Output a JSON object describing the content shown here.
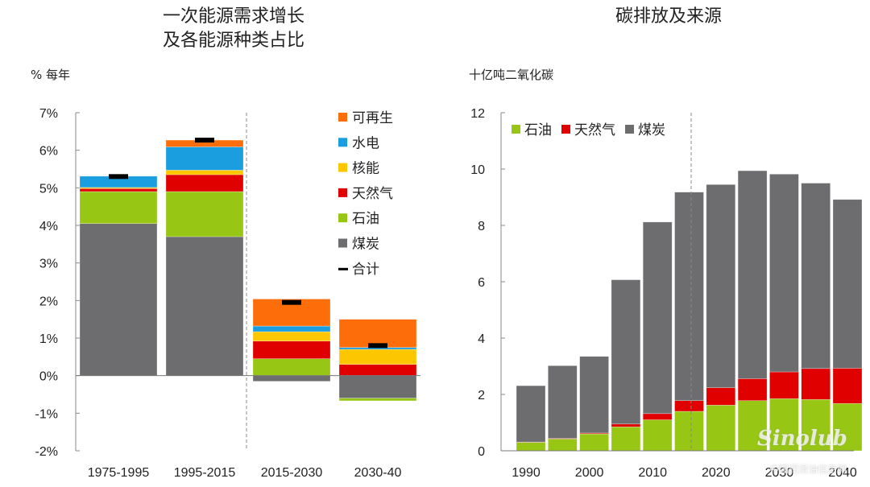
{
  "chart_data": [
    {
      "type": "bar",
      "stacked": true,
      "title": "一次能源需求增长\n及各能源种类占比",
      "title_lines": [
        "一次能源需求增长",
        "及各能源种类占比"
      ],
      "ylabel": "% 每年",
      "xlabel": "",
      "ylim": [
        -2,
        7
      ],
      "yticks": [
        "7%",
        "6%",
        "5%",
        "4%",
        "3%",
        "2%",
        "1%",
        "0%",
        "-1%",
        "-2%"
      ],
      "ytick_values": [
        7,
        6,
        5,
        4,
        3,
        2,
        1,
        0,
        -1,
        -2
      ],
      "categories": [
        "1975-1995",
        "1995-2015",
        "2015-2030",
        "2030-40"
      ],
      "divider_after_category": 1,
      "legend_position": "right",
      "series": [
        {
          "name": "煤炭",
          "color": "#6d6d6f",
          "values": [
            4.05,
            3.7,
            -0.15,
            -0.6
          ]
        },
        {
          "name": "石油",
          "color": "#97c614",
          "values": [
            0.85,
            1.2,
            0.45,
            -0.07
          ]
        },
        {
          "name": "天然气",
          "color": "#e00000",
          "values": [
            0.08,
            0.45,
            0.47,
            0.3
          ]
        },
        {
          "name": "核能",
          "color": "#fcc600",
          "values": [
            0.03,
            0.12,
            0.25,
            0.4
          ]
        },
        {
          "name": "水电",
          "color": "#1a9ee0",
          "values": [
            0.3,
            0.62,
            0.15,
            0.05
          ]
        },
        {
          "name": "可再生",
          "color": "#fd6e0b",
          "values": [
            0.0,
            0.18,
            0.72,
            0.75
          ]
        }
      ],
      "totals": {
        "name": "合计",
        "color": "#000000",
        "values": [
          5.3,
          6.27,
          1.95,
          0.8
        ]
      },
      "legend_order": [
        "可再生",
        "水电",
        "核能",
        "天然气",
        "石油",
        "煤炭",
        "合计"
      ]
    },
    {
      "type": "bar",
      "stacked": true,
      "title": "碳排放及来源",
      "ylabel": "十亿吨二氧化碳",
      "xlabel": "",
      "ylim": [
        0,
        12
      ],
      "yticks": [
        "12",
        "10",
        "8",
        "6",
        "4",
        "2",
        "0"
      ],
      "ytick_values": [
        12,
        10,
        8,
        6,
        4,
        2,
        0
      ],
      "categories": [
        "1990",
        "1995",
        "2000",
        "2005",
        "2010",
        "2015",
        "2020",
        "2025",
        "2030",
        "2035",
        "2040"
      ],
      "xtick_labels": [
        "1990",
        "2000",
        "2010",
        "2020",
        "2030",
        "2040"
      ],
      "divider_after_category": 5,
      "legend_position": "top-left",
      "series": [
        {
          "name": "石油",
          "color": "#97c614",
          "values": [
            0.3,
            0.42,
            0.6,
            0.85,
            1.1,
            1.4,
            1.62,
            1.78,
            1.85,
            1.82,
            1.68
          ]
        },
        {
          "name": "天然气",
          "color": "#e00000",
          "values": [
            0.01,
            0.02,
            0.03,
            0.1,
            0.22,
            0.38,
            0.62,
            0.78,
            0.95,
            1.1,
            1.25
          ]
        },
        {
          "name": "煤炭",
          "color": "#6d6d6f",
          "values": [
            2.0,
            2.58,
            2.72,
            5.12,
            6.8,
            7.4,
            7.21,
            7.38,
            7.02,
            6.58,
            5.99
          ]
        }
      ],
      "legend_order": [
        "石油",
        "天然气",
        "煤炭"
      ]
    }
  ],
  "watermark": {
    "brand": "Sinolub",
    "domain": ".com",
    "cn": "中国润滑油信息网"
  }
}
